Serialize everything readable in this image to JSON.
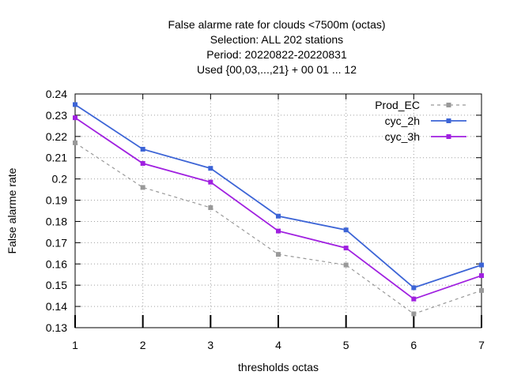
{
  "chart_data": {
    "type": "line",
    "title_lines": [
      "False alarme rate  for clouds <7500m (octas)",
      "Selection: ALL    202 stations",
      "Period: 20220822-20220831",
      "Used {00,03,...,21} + 00 01 ... 12"
    ],
    "xlabel": "thresholds octas",
    "ylabel": "False alarme rate",
    "x": [
      1,
      2,
      3,
      4,
      5,
      6,
      7
    ],
    "xlim": [
      1,
      7
    ],
    "ylim": [
      0.13,
      0.24
    ],
    "yticks": [
      "0.13",
      "0.14",
      "0.15",
      "0.16",
      "0.17",
      "0.18",
      "0.19",
      "0.2",
      "0.21",
      "0.22",
      "0.23",
      "0.24"
    ],
    "xticks": [
      "1",
      "2",
      "3",
      "4",
      "5",
      "6",
      "7"
    ],
    "grid": true,
    "legend_position": "top-right",
    "series": [
      {
        "name": "Prod_EC",
        "values": [
          0.217,
          0.196,
          0.1865,
          0.1645,
          0.1595,
          0.1365,
          0.1475
        ],
        "color": "#999999",
        "dash": true
      },
      {
        "name": "cyc_2h",
        "values": [
          0.235,
          0.214,
          0.205,
          0.1825,
          0.176,
          0.1488,
          0.1595
        ],
        "color": "#3c64d6",
        "dash": false
      },
      {
        "name": "cyc_3h",
        "values": [
          0.2288,
          0.2073,
          0.1985,
          0.1755,
          0.1675,
          0.1435,
          0.1545
        ],
        "color": "#a020e0",
        "dash": false
      }
    ]
  }
}
